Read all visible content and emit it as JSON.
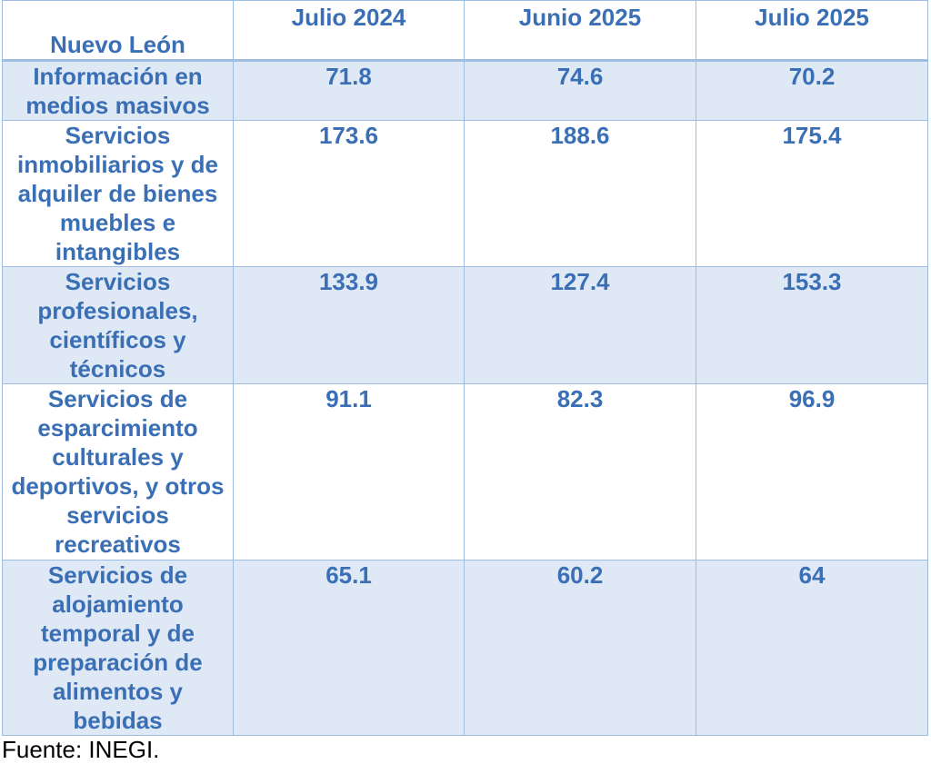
{
  "chart_data": {
    "type": "table",
    "corner_label": "Nuevo León",
    "columns": [
      "Julio 2024",
      "Junio 2025",
      "Julio 2025"
    ],
    "rows": [
      {
        "label": "Información en medios masivos",
        "values": [
          "71.8",
          "74.6",
          "70.2"
        ]
      },
      {
        "label": "Servicios inmobiliarios y de alquiler de bienes muebles e intangibles",
        "values": [
          "173.6",
          "188.6",
          "175.4"
        ]
      },
      {
        "label": "Servicios profesionales, científicos y técnicos",
        "values": [
          "133.9",
          "127.4",
          "153.3"
        ]
      },
      {
        "label": "Servicios de esparcimiento culturales y deportivos, y otros servicios recreativos",
        "values": [
          "91.1",
          "82.3",
          "96.9"
        ]
      },
      {
        "label": "Servicios de alojamiento temporal y de preparación de alimentos y bebidas",
        "values": [
          "65.1",
          "60.2",
          "64"
        ]
      }
    ]
  },
  "source": "Fuente: INEGI.",
  "colors": {
    "text": "#3a6fb5",
    "shaded_row": "#dfe8f5",
    "border": "#9dbde3"
  }
}
